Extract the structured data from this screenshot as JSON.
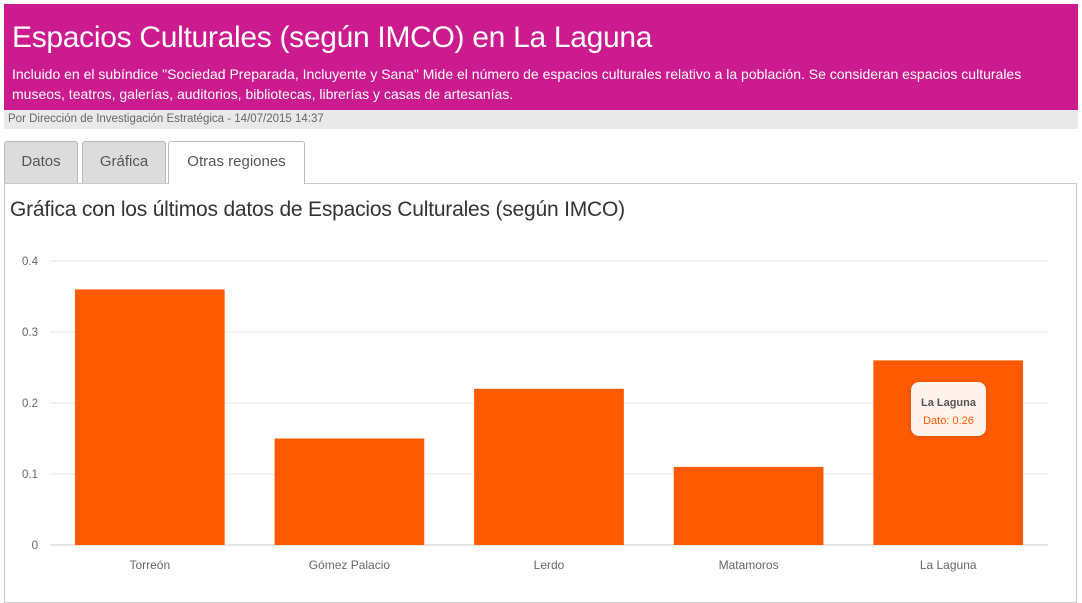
{
  "header": {
    "title": "Espacios Culturales (según IMCO) en La Laguna",
    "description": "Incluido en el subíndice \"Sociedad Preparada, Incluyente y Sana\" Mide el número de espacios culturales relativo a la población. Se consideran espacios culturales museos, teatros, galerías, auditorios, bibliotecas, librerías y casas de artesanías.",
    "byline": "Por Dirección de Investigación Estratégica - 14/07/2015 14:37",
    "background_color": "#cc1a8f"
  },
  "tabs": [
    {
      "label": "Datos",
      "active": false
    },
    {
      "label": "Gráfica",
      "active": false
    },
    {
      "label": "Otras regiones",
      "active": true
    }
  ],
  "panel": {
    "title": "Gráfica con los últimos datos de Espacios Culturales (según IMCO)"
  },
  "tooltip": {
    "name": "La Laguna",
    "value_text": "Dato: 0.26"
  },
  "chart_data": {
    "type": "bar",
    "categories": [
      "Torreón",
      "Gómez Palacio",
      "Lerdo",
      "Matamoros",
      "La Laguna"
    ],
    "values": [
      0.36,
      0.15,
      0.22,
      0.11,
      0.26
    ],
    "ylim": [
      0,
      0.4
    ],
    "yticks": [
      "0",
      "0.1",
      "0.2",
      "0.3",
      "0.4"
    ],
    "title": "",
    "xlabel": "",
    "ylabel": "",
    "grid": true,
    "bar_color": "#ff5a00"
  }
}
